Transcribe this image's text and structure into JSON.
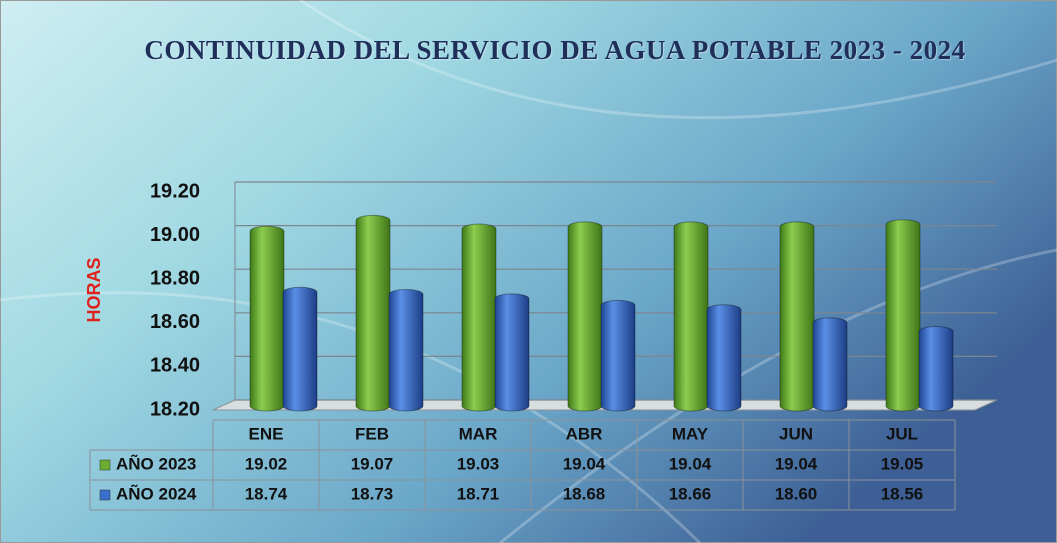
{
  "chart_data": {
    "type": "bar",
    "title": "CONTINUIDAD DEL SERVICIO DE AGUA POTABLE 2023 - 2024",
    "ylabel": "HORAS",
    "categories": [
      "ENE",
      "FEB",
      "MAR",
      "ABR",
      "MAY",
      "JUN",
      "JUL"
    ],
    "series": [
      {
        "name": "AÑO 2023",
        "color": "#6aad2f",
        "values": [
          19.02,
          19.07,
          19.03,
          19.04,
          19.04,
          19.04,
          19.05
        ],
        "value_labels": [
          "19.02",
          "19.07",
          "19.03",
          "19.04",
          "19.04",
          "19.04",
          "19.05"
        ]
      },
      {
        "name": "AÑO 2024",
        "color": "#3a6fd0",
        "values": [
          18.74,
          18.73,
          18.71,
          18.68,
          18.66,
          18.6,
          18.56
        ],
        "value_labels": [
          "18.74",
          "18.73",
          "18.71",
          "18.68",
          "18.66",
          "18.60",
          "18.56"
        ]
      }
    ],
    "ylim": [
      18.2,
      19.2
    ],
    "yticks": [
      {
        "value": 18.2,
        "label": "18.20"
      },
      {
        "value": 18.4,
        "label": "18.40"
      },
      {
        "value": 18.6,
        "label": "18.60"
      },
      {
        "value": 18.8,
        "label": "18.80"
      },
      {
        "value": 19.0,
        "label": "19.00"
      },
      {
        "value": 19.2,
        "label": "19.20"
      }
    ],
    "grid": true
  }
}
